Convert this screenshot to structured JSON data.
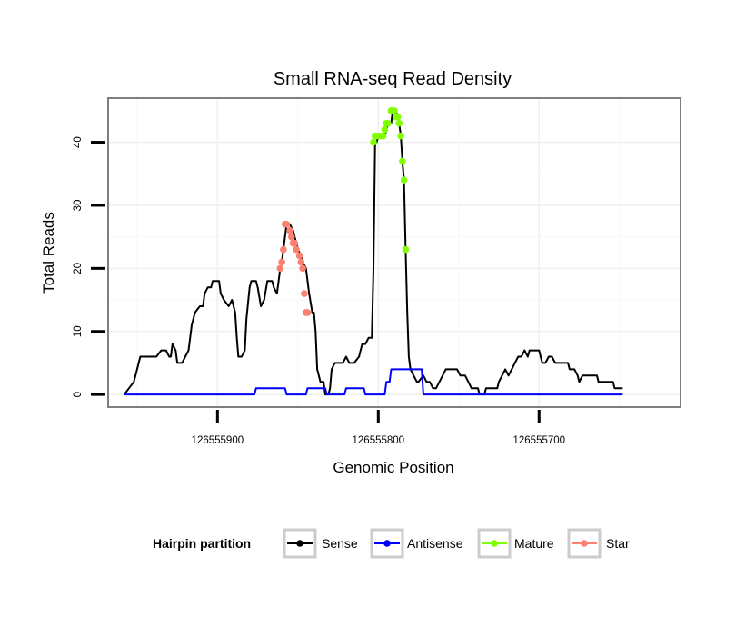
{
  "chart_data": {
    "type": "line",
    "title": "Small RNA-seq Read Density",
    "xlabel": "Genomic Position",
    "ylabel": "Total Reads",
    "xlim": [
      126555968,
      126555612
    ],
    "ylim": [
      -2,
      47
    ],
    "x_reversed": true,
    "xticks": [
      126555900,
      126555800,
      126555700
    ],
    "xtick_labels": [
      "126555900",
      "126555800",
      "126555700"
    ],
    "yticks": [
      0,
      10,
      20,
      30,
      40
    ],
    "ytick_labels": [
      "0",
      "10",
      "20",
      "30",
      "40"
    ],
    "grid": true,
    "legend": {
      "title": "Hairpin partition",
      "placement": "bottom",
      "entries": [
        {
          "label": "Sense",
          "color": "#000000"
        },
        {
          "label": "Antisense",
          "color": "#0000ff"
        },
        {
          "label": "Mature",
          "color": "#7fff00"
        },
        {
          "label": "Star",
          "color": "#fa8072"
        }
      ]
    },
    "series": [
      {
        "name": "Sense",
        "color": "#000000",
        "points": [
          [
            126555958,
            0
          ],
          [
            126555955,
            1
          ],
          [
            126555952,
            2
          ],
          [
            126555950,
            4
          ],
          [
            126555949,
            5
          ],
          [
            126555948,
            6
          ],
          [
            126555938,
            6
          ],
          [
            126555935,
            7
          ],
          [
            126555932,
            7
          ],
          [
            126555930,
            6
          ],
          [
            126555929,
            6
          ],
          [
            126555928,
            8
          ],
          [
            126555926,
            7
          ],
          [
            126555925,
            5
          ],
          [
            126555922,
            5
          ],
          [
            126555920,
            6
          ],
          [
            126555918,
            7
          ],
          [
            126555916,
            11
          ],
          [
            126555914,
            13
          ],
          [
            126555911,
            14
          ],
          [
            126555909,
            14
          ],
          [
            126555908,
            16
          ],
          [
            126555906,
            17
          ],
          [
            126555904,
            17
          ],
          [
            126555903,
            18
          ],
          [
            126555899,
            18
          ],
          [
            126555898,
            16
          ],
          [
            126555896,
            15
          ],
          [
            126555893,
            14
          ],
          [
            126555891,
            15
          ],
          [
            126555889,
            13
          ],
          [
            126555888,
            9
          ],
          [
            126555887,
            6
          ],
          [
            126555885,
            6
          ],
          [
            126555883,
            7
          ],
          [
            126555882,
            12
          ],
          [
            126555880,
            17
          ],
          [
            126555879,
            18
          ],
          [
            126555876,
            18
          ],
          [
            126555875,
            17
          ],
          [
            126555873,
            14
          ],
          [
            126555871,
            15
          ],
          [
            126555869,
            18
          ],
          [
            126555866,
            18
          ],
          [
            126555865,
            17
          ],
          [
            126555863,
            16
          ],
          [
            126555861,
            20
          ],
          [
            126555860,
            21
          ],
          [
            126555859,
            23
          ],
          [
            126555857,
            27
          ],
          [
            126555855,
            27
          ],
          [
            126555853,
            26
          ],
          [
            126555852,
            25
          ],
          [
            126555851,
            24
          ],
          [
            126555850,
            23
          ],
          [
            126555848,
            22
          ],
          [
            126555847,
            21
          ],
          [
            126555845,
            20
          ],
          [
            126555843,
            16
          ],
          [
            126555841,
            13
          ],
          [
            126555840,
            13
          ],
          [
            126555839,
            10
          ],
          [
            126555838,
            4
          ],
          [
            126555836,
            2
          ],
          [
            126555834,
            2
          ],
          [
            126555833,
            0
          ],
          [
            126555831,
            0
          ],
          [
            126555830,
            1
          ],
          [
            126555829,
            4
          ],
          [
            126555827,
            5
          ],
          [
            126555822,
            5
          ],
          [
            126555820,
            6
          ],
          [
            126555818,
            5
          ],
          [
            126555815,
            5
          ],
          [
            126555812,
            6
          ],
          [
            126555810,
            8
          ],
          [
            126555808,
            8
          ],
          [
            126555806,
            9
          ],
          [
            126555804,
            9
          ],
          [
            126555803,
            20
          ],
          [
            126555802,
            40
          ],
          [
            126555801,
            40
          ],
          [
            126555800,
            41
          ],
          [
            126555796,
            41
          ],
          [
            126555795,
            42
          ],
          [
            126555794,
            43
          ],
          [
            126555792,
            43
          ],
          [
            126555791,
            45
          ],
          [
            126555789,
            45
          ],
          [
            126555788,
            44
          ],
          [
            126555787,
            43
          ],
          [
            126555786,
            41
          ],
          [
            126555785,
            37
          ],
          [
            126555784,
            34
          ],
          [
            126555783,
            23
          ],
          [
            126555782,
            13
          ],
          [
            126555781,
            6
          ],
          [
            126555780,
            4
          ],
          [
            126555778,
            3
          ],
          [
            126555776,
            2
          ],
          [
            126555775,
            2
          ],
          [
            126555772,
            3
          ],
          [
            126555770,
            2
          ],
          [
            126555768,
            2
          ],
          [
            126555766,
            1
          ],
          [
            126555764,
            1
          ],
          [
            126555762,
            2
          ],
          [
            126555760,
            3
          ],
          [
            126555758,
            4
          ],
          [
            126555751,
            4
          ],
          [
            126555749,
            3
          ],
          [
            126555746,
            3
          ],
          [
            126555744,
            2
          ],
          [
            126555742,
            1
          ],
          [
            126555738,
            1
          ],
          [
            126555737,
            0
          ],
          [
            126555734,
            0
          ],
          [
            126555733,
            1
          ],
          [
            126555726,
            1
          ],
          [
            126555725,
            2
          ],
          [
            126555723,
            3
          ],
          [
            126555721,
            4
          ],
          [
            126555719,
            3
          ],
          [
            126555717,
            4
          ],
          [
            126555715,
            5
          ],
          [
            126555713,
            6
          ],
          [
            126555711,
            6
          ],
          [
            126555709,
            7
          ],
          [
            126555707,
            6
          ],
          [
            126555706,
            7
          ],
          [
            126555700,
            7
          ],
          [
            126555699,
            6
          ],
          [
            126555698,
            5
          ],
          [
            126555696,
            5
          ],
          [
            126555694,
            6
          ],
          [
            126555692,
            6
          ],
          [
            126555690,
            5
          ],
          [
            126555682,
            5
          ],
          [
            126555681,
            4
          ],
          [
            126555678,
            4
          ],
          [
            126555676,
            3
          ],
          [
            126555675,
            2
          ],
          [
            126555673,
            3
          ],
          [
            126555664,
            3
          ],
          [
            126555663,
            2
          ],
          [
            126555654,
            2
          ],
          [
            126555653,
            1
          ],
          [
            126555648,
            1
          ]
        ]
      },
      {
        "name": "Antisense",
        "color": "#0000ff",
        "points": [
          [
            126555958,
            0
          ],
          [
            126555877,
            0
          ],
          [
            126555876,
            1
          ],
          [
            126555858,
            1
          ],
          [
            126555857,
            0
          ],
          [
            126555845,
            0
          ],
          [
            126555844,
            1
          ],
          [
            126555833,
            1
          ],
          [
            126555832,
            0
          ],
          [
            126555821,
            0
          ],
          [
            126555820,
            1
          ],
          [
            126555809,
            1
          ],
          [
            126555808,
            0
          ],
          [
            126555796,
            0
          ],
          [
            126555795,
            2
          ],
          [
            126555793,
            2
          ],
          [
            126555792,
            4
          ],
          [
            126555773,
            4
          ],
          [
            126555772,
            0
          ],
          [
            126555648,
            0
          ]
        ]
      },
      {
        "name": "Mature",
        "color": "#7fff00",
        "points": [
          [
            126555803,
            40
          ],
          [
            126555802,
            41
          ],
          [
            126555801,
            41
          ],
          [
            126555799,
            41
          ],
          [
            126555797,
            41
          ],
          [
            126555796,
            42
          ],
          [
            126555795,
            43
          ],
          [
            126555794,
            43
          ],
          [
            126555792,
            45
          ],
          [
            126555791,
            45
          ],
          [
            126555790,
            45
          ],
          [
            126555789,
            44
          ],
          [
            126555788,
            44
          ],
          [
            126555787,
            43
          ],
          [
            126555786,
            41
          ],
          [
            126555785,
            37
          ],
          [
            126555784,
            34
          ],
          [
            126555783,
            23
          ]
        ]
      },
      {
        "name": "Star",
        "color": "#fa8072",
        "points": [
          [
            126555861,
            20
          ],
          [
            126555860,
            21
          ],
          [
            126555859,
            23
          ],
          [
            126555858,
            27
          ],
          [
            126555857,
            27
          ],
          [
            126555855,
            26
          ],
          [
            126555854,
            25
          ],
          [
            126555853,
            24
          ],
          [
            126555852,
            24
          ],
          [
            126555851,
            23
          ],
          [
            126555849,
            22
          ],
          [
            126555848,
            21
          ],
          [
            126555847,
            20
          ],
          [
            126555846,
            16
          ],
          [
            126555845,
            13
          ],
          [
            126555844,
            13
          ]
        ]
      }
    ]
  }
}
